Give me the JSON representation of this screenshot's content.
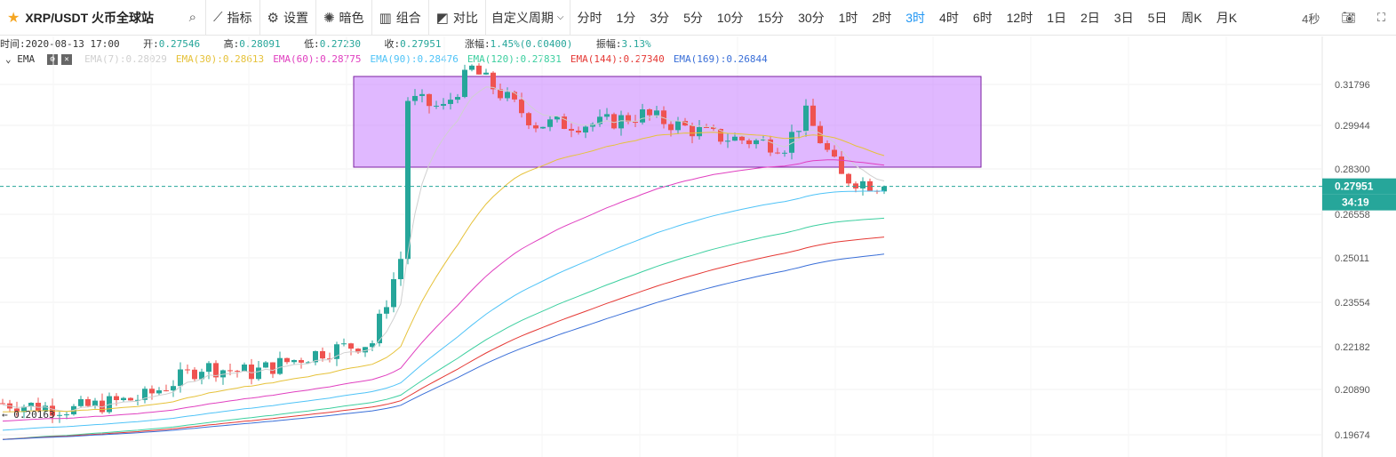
{
  "toolbar": {
    "symbol": "XRP/USDT 火币全球站",
    "buttons": [
      "指标",
      "设置",
      "暗色",
      "组合",
      "对比"
    ],
    "custom_period": "自定义周期",
    "intervals": [
      "分时",
      "1分",
      "3分",
      "5分",
      "10分",
      "15分",
      "30分",
      "1时",
      "2时",
      "3时",
      "4时",
      "6时",
      "12时",
      "1日",
      "2日",
      "3日",
      "5日",
      "周K",
      "月K"
    ],
    "active_interval": "3时",
    "refresh": "4秒"
  },
  "info": {
    "time_label": "时间:",
    "time": "2020-08-13 17:00",
    "open_label": "开:",
    "open": "0.27546",
    "high_label": "高:",
    "high": "0.28091",
    "low_label": "低:",
    "low": "0.27230",
    "close_label": "收:",
    "close": "0.27951",
    "change_label": "涨幅:",
    "change": "1.45%(0.00400)",
    "amp_label": "振幅:",
    "amp": "3.13%"
  },
  "ema": {
    "label": "EMA",
    "items": [
      {
        "text": "EMA(7):0.28029",
        "color": "#d0d0d0"
      },
      {
        "text": "EMA(30):0.28613",
        "color": "#e6c23a"
      },
      {
        "text": "EMA(60):0.28775",
        "color": "#e040c0"
      },
      {
        "text": "EMA(90):0.28476",
        "color": "#4fc3f7"
      },
      {
        "text": "EMA(120):0.27831",
        "color": "#3ccf9f"
      },
      {
        "text": "EMA(144):0.27340",
        "color": "#e53935"
      },
      {
        "text": "EMA(169):0.26844",
        "color": "#3a6fd8"
      }
    ]
  },
  "axis": {
    "ticks": [
      "0.31796",
      "0.29944",
      "0.28300",
      "0.26558",
      "0.25011",
      "0.23554",
      "0.22182",
      "0.20890",
      "0.19674"
    ],
    "price_tag": "0.27951",
    "countdown": "34:19",
    "low_marker": "0.20163"
  },
  "colors": {
    "up": "#26a69a",
    "down": "#ef5350",
    "box": "#c77dff",
    "box_border": "#7b1fa2"
  }
}
